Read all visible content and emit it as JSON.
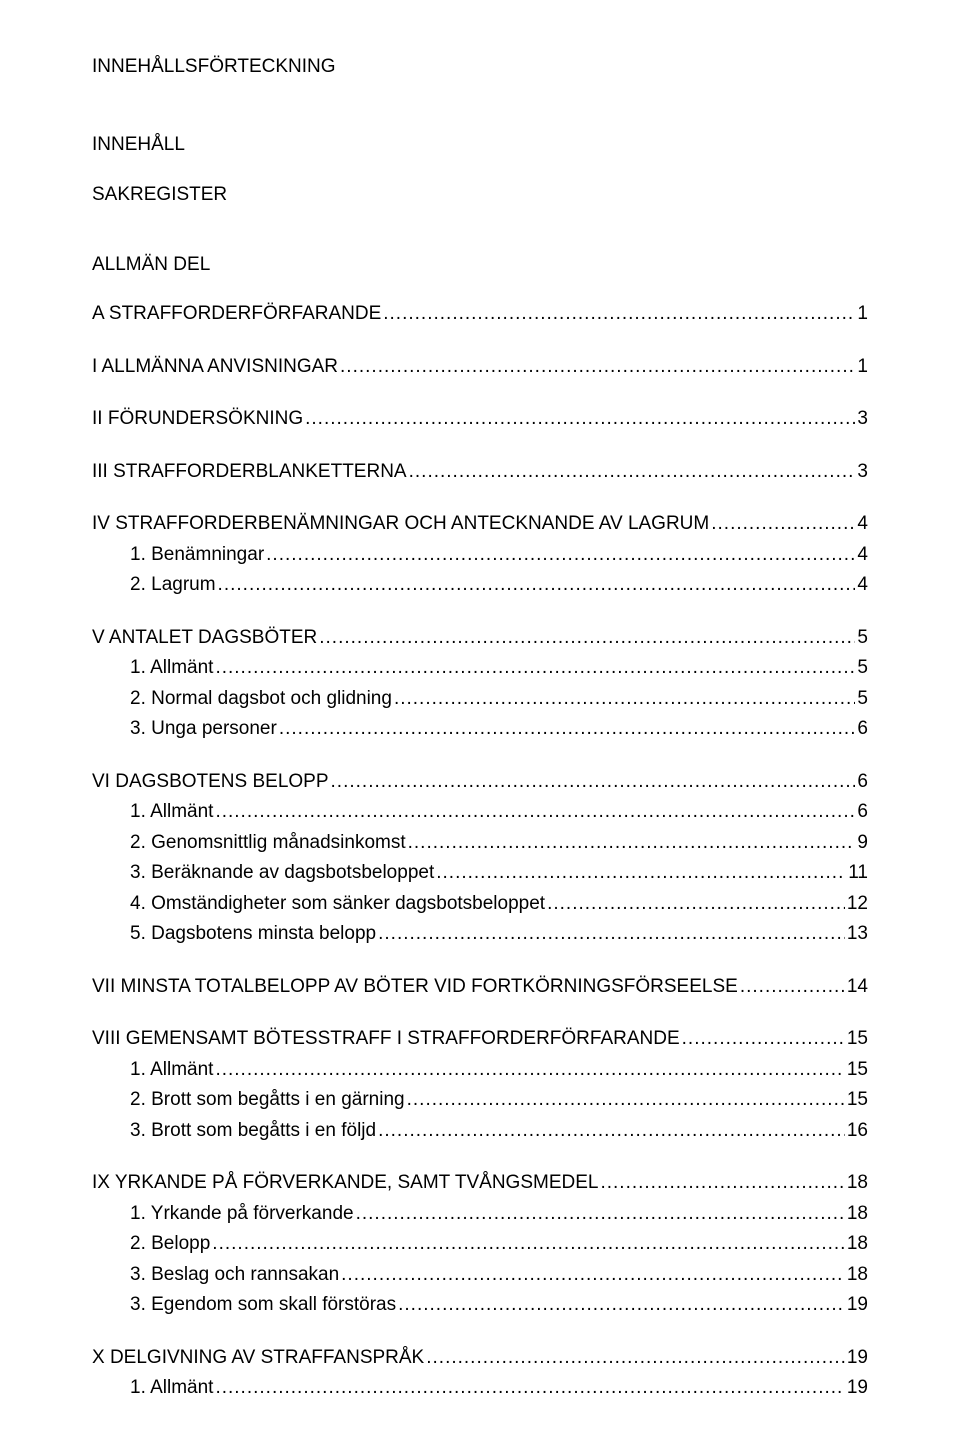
{
  "title": "INNEHÅLLSFÖRTECKNING",
  "meta1": "INNEHÅLL",
  "meta2": "SAKREGISTER",
  "section_head": "ALLMÄN DEL",
  "entries": [
    {
      "label": "A   STRAFFORDERFÖRFARANDE",
      "page": "1",
      "level": 0,
      "space": true
    },
    {
      "label": "I   ALLMÄNNA ANVISNINGAR",
      "page": "1",
      "level": 0,
      "space": true
    },
    {
      "label": "II   FÖRUNDERSÖKNING",
      "page": "3",
      "level": 0,
      "space": true
    },
    {
      "label": "III   STRAFFORDERBLANKETTERNA",
      "page": "3",
      "level": 0,
      "space": true
    },
    {
      "label": "IV   STRAFFORDERBENÄMNINGAR OCH ANTECKNANDE AV LAGRUM",
      "page": "4",
      "level": 0,
      "space": true
    },
    {
      "label": "1.   Benämningar",
      "page": "4",
      "level": 1
    },
    {
      "label": "2.   Lagrum",
      "page": "4",
      "level": 1
    },
    {
      "label": "V   ANTALET DAGSBÖTER",
      "page": "5",
      "level": 0,
      "space": true
    },
    {
      "label": "1.   Allmänt",
      "page": "5",
      "level": 1
    },
    {
      "label": "2.   Normal dagsbot och glidning",
      "page": "5",
      "level": 1
    },
    {
      "label": "3.   Unga personer",
      "page": "6",
      "level": 1
    },
    {
      "label": "VI   DAGSBOTENS BELOPP",
      "page": "6",
      "level": 0,
      "space": true
    },
    {
      "label": "1.   Allmänt",
      "page": "6",
      "level": 1
    },
    {
      "label": "2.   Genomsnittlig månadsinkomst",
      "page": "9",
      "level": 1
    },
    {
      "label": "3.   Beräknande av dagsbotsbeloppet",
      "page": "11",
      "level": 1
    },
    {
      "label": "4.   Omständigheter som sänker dagsbotsbeloppet",
      "page": "12",
      "level": 1
    },
    {
      "label": "5.   Dagsbotens minsta belopp",
      "page": "13",
      "level": 1
    },
    {
      "label": "VII   MINSTA TOTALBELOPP AV BÖTER VID FORTKÖRNINGSFÖRSEELSE",
      "page": "14",
      "level": 0,
      "space": true
    },
    {
      "label": "VIII  GEMENSAMT BÖTESSTRAFF I STRAFFORDERFÖRFARANDE",
      "page": "15",
      "level": 0,
      "space": true
    },
    {
      "label": "1.   Allmänt",
      "page": "15",
      "level": 1
    },
    {
      "label": "2.   Brott som begåtts i en gärning",
      "page": "15",
      "level": 1
    },
    {
      "label": "3.   Brott som begåtts i en följd",
      "page": "16",
      "level": 1
    },
    {
      "label": "IX   YRKANDE PÅ FÖRVERKANDE, SAMT TVÅNGSMEDEL",
      "page": "18",
      "level": 0,
      "space": true
    },
    {
      "label": "1.   Yrkande på förverkande",
      "page": "18",
      "level": 1
    },
    {
      "label": "2.   Belopp",
      "page": "18",
      "level": 1
    },
    {
      "label": "3.   Beslag och rannsakan",
      "page": "18",
      "level": 1
    },
    {
      "label": "3.   Egendom som skall förstöras",
      "page": "19",
      "level": 1
    },
    {
      "label": "X   DELGIVNING AV STRAFFANSPRÅK",
      "page": "19",
      "level": 0,
      "space": true
    },
    {
      "label": "1.   Allmänt",
      "page": "19",
      "level": 1
    }
  ]
}
